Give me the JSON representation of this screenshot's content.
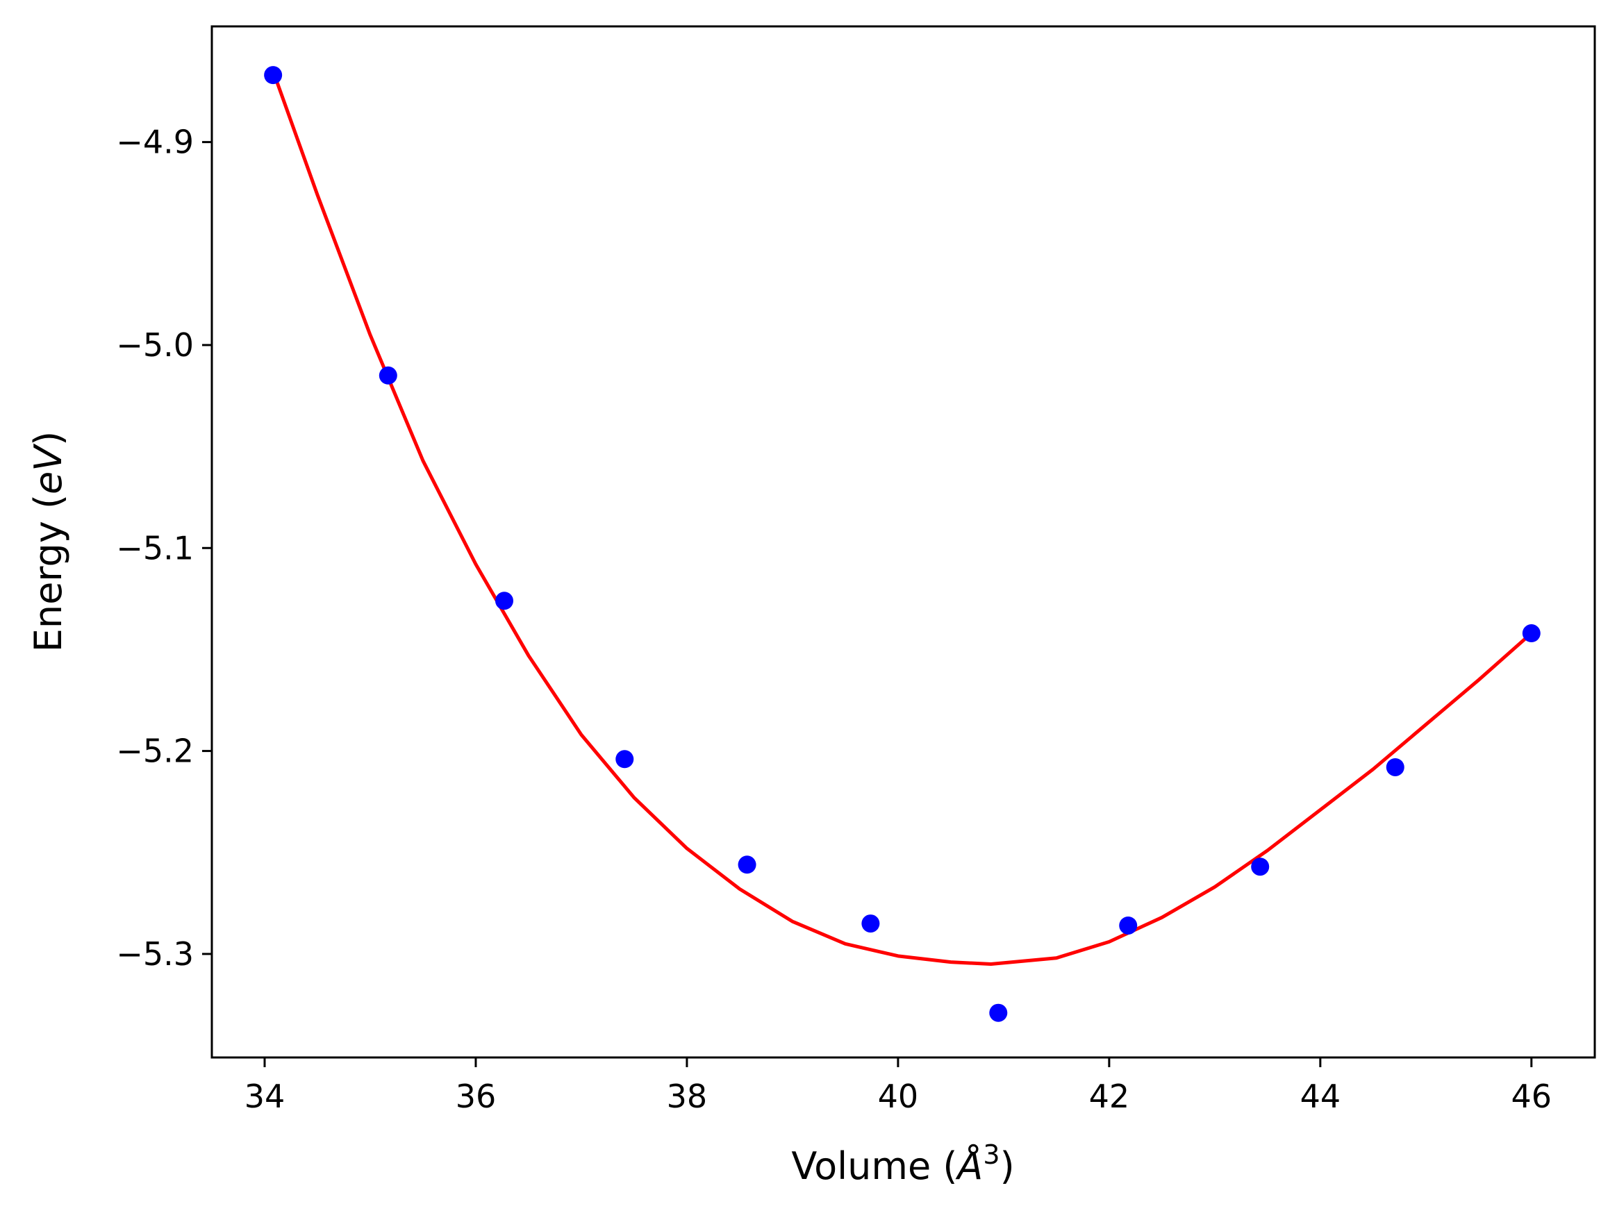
{
  "chart_data": {
    "type": "scatter",
    "xlabel": "Volume (Å3)",
    "xlabel_parts": {
      "prefix": "Volume (",
      "symbol": "Å",
      "superscript": "3",
      "suffix": ")"
    },
    "ylabel": "Energy (eV)",
    "ylabel_parts": {
      "prefix": "Energy (",
      "symbol": "eV",
      "suffix": ")"
    },
    "xlim": [
      33.5,
      46.6
    ],
    "ylim": [
      -5.351,
      -4.843
    ],
    "xticks": [
      34,
      36,
      38,
      40,
      42,
      44,
      46
    ],
    "xtick_labels": [
      "34",
      "36",
      "38",
      "40",
      "42",
      "44",
      "46"
    ],
    "yticks": [
      -5.3,
      -5.2,
      -5.1,
      -5.0,
      -4.9
    ],
    "ytick_labels": [
      "−5.3",
      "−5.2",
      "−5.1",
      "−5.0",
      "−4.9"
    ],
    "grid": false,
    "series": [
      {
        "kind": "scatter",
        "color": "#0000ff",
        "x": [
          34.08,
          35.17,
          36.27,
          37.41,
          38.57,
          39.74,
          40.95,
          42.18,
          43.43,
          44.71,
          46.0
        ],
        "y": [
          -4.867,
          -5.015,
          -5.126,
          -5.204,
          -5.256,
          -5.285,
          -5.329,
          -5.286,
          -5.257,
          -5.208,
          -5.142
        ]
      },
      {
        "kind": "line",
        "color": "#ff0000",
        "x": [
          34.08,
          34.5,
          35.0,
          35.5,
          36.0,
          36.5,
          37.0,
          37.5,
          38.0,
          38.5,
          39.0,
          39.5,
          40.0,
          40.5,
          40.88,
          41.5,
          42.0,
          42.5,
          43.0,
          43.5,
          44.0,
          44.5,
          45.0,
          45.5,
          46.0
        ],
        "y": [
          -4.865,
          -4.926,
          -4.995,
          -5.057,
          -5.108,
          -5.153,
          -5.192,
          -5.223,
          -5.248,
          -5.268,
          -5.284,
          -5.295,
          -5.301,
          -5.304,
          -5.305,
          -5.302,
          -5.294,
          -5.282,
          -5.267,
          -5.249,
          -5.229,
          -5.209,
          -5.187,
          -5.165,
          -5.142
        ]
      }
    ]
  }
}
